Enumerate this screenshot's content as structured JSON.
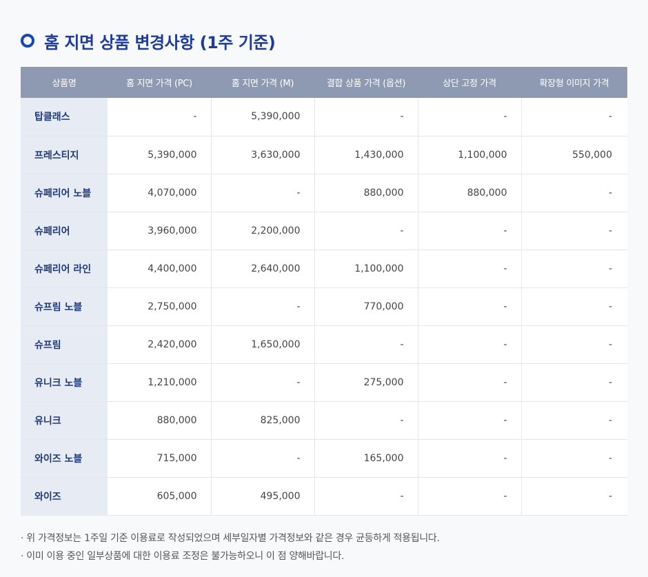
{
  "title": "홈 지면 상품 변경사항 (1주 기준)",
  "table": {
    "headers": [
      "상품명",
      "홈 지면 가격 (PC)",
      "홈 지면 가격 (M)",
      "결합 상품 가격 (옵션)",
      "상단 고정 가격",
      "확장형 이미지 가격"
    ],
    "rows": [
      [
        "탑클래스",
        "-",
        "5,390,000",
        "-",
        "-",
        "-"
      ],
      [
        "프레스티지",
        "5,390,000",
        "3,630,000",
        "1,430,000",
        "1,100,000",
        "550,000"
      ],
      [
        "슈페리어 노블",
        "4,070,000",
        "-",
        "880,000",
        "880,000",
        "-"
      ],
      [
        "슈페리어",
        "3,960,000",
        "2,200,000",
        "-",
        "-",
        "-"
      ],
      [
        "슈페리어 라인",
        "4,400,000",
        "2,640,000",
        "1,100,000",
        "-",
        "-"
      ],
      [
        "슈프림 노블",
        "2,750,000",
        "-",
        "770,000",
        "-",
        "-"
      ],
      [
        "슈프림",
        "2,420,000",
        "1,650,000",
        "-",
        "-",
        "-"
      ],
      [
        "유니크 노블",
        "1,210,000",
        "-",
        "275,000",
        "-",
        "-"
      ],
      [
        "유니크",
        "880,000",
        "825,000",
        "-",
        "-",
        "-"
      ],
      [
        "와이즈 노블",
        "715,000",
        "-",
        "165,000",
        "-",
        "-"
      ],
      [
        "와이즈",
        "605,000",
        "495,000",
        "-",
        "-",
        "-"
      ]
    ]
  },
  "notes": [
    "· 위 가격정보는 1주일 기준 이용료로 작성되었으며 세부일자별 가격정보와 같은 경우 균등하게 적용됩니다.",
    "· 이미 이용 중인 일부상품에 대한 이용료 조정은 불가능하오니 이 점 양해바랍니다."
  ],
  "colors": {
    "accent": "#1446b5",
    "header_bg": "#8d9ab1",
    "name_bg": "#e6ebf4"
  }
}
